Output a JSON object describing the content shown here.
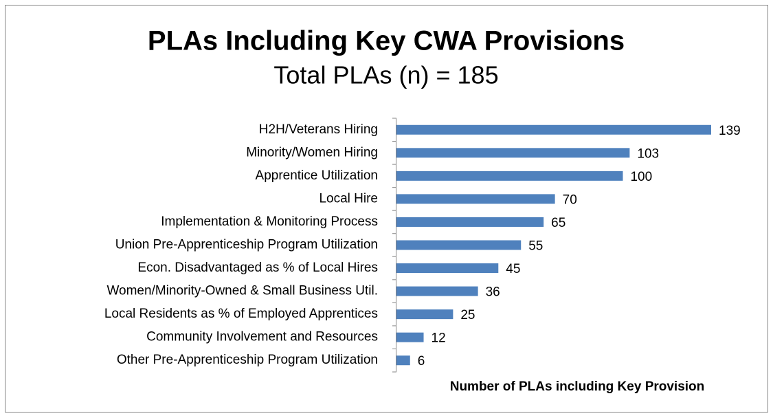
{
  "chart_data": {
    "type": "bar",
    "orientation": "horizontal",
    "title": "PLAs Including Key CWA Provisions",
    "subtitle": "Total PLAs (n) = 185",
    "x_label": "Number of PLAs including Key Provision",
    "categories": [
      "H2H/Veterans Hiring",
      "Minority/Women Hiring",
      "Apprentice Utilization",
      "Local Hire",
      "Implementation & Monitoring Process",
      "Union Pre-Apprenticeship Program Utilization",
      "Econ. Disadvantaged as % of Local Hires",
      "Women/Minority-Owned & Small Business Util.",
      "Local Residents as % of Employed Apprentices",
      "Community Involvement and Resources",
      "Other Pre-Apprenticeship Program Utilization"
    ],
    "values": [
      139,
      103,
      100,
      70,
      65,
      55,
      45,
      36,
      25,
      12,
      6
    ],
    "color": "#4f81bd"
  }
}
